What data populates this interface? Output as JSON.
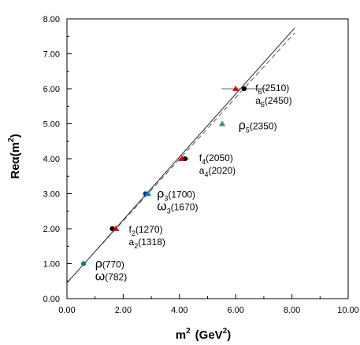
{
  "chart_data": {
    "type": "scatter",
    "title": "",
    "xlabel": {
      "main": "m",
      "sup": "2",
      "unit_open": "(GeV",
      "unit_sup": "2",
      "unit_close": ")"
    },
    "ylabel": {
      "main": "Reα(m",
      "sup": "2",
      "close": ")"
    },
    "xlim": [
      0,
      10
    ],
    "ylim": [
      0,
      8
    ],
    "x_ticks": [
      "0.00",
      "2.00",
      "4.00",
      "6.00",
      "8.00",
      "10.00"
    ],
    "y_ticks": [
      "0.00",
      "1.00",
      "2.00",
      "3.00",
      "4.00",
      "5.00",
      "6.00",
      "7.00",
      "8.00"
    ],
    "grid": false,
    "series": [
      {
        "marker": "circle",
        "color": "#008080",
        "points": [
          {
            "x": 0.59,
            "y": 1.0
          }
        ]
      },
      {
        "marker": "circle",
        "color": "#000000",
        "points": [
          {
            "x": 1.61,
            "y": 2.0
          },
          {
            "x": 4.2,
            "y": 4.0
          },
          {
            "x": 6.3,
            "y": 6.0
          }
        ]
      },
      {
        "marker": "triangle",
        "color": "#dd0000",
        "points": [
          {
            "x": 1.74,
            "y": 2.0
          },
          {
            "x": 4.08,
            "y": 4.0
          },
          {
            "x": 6.0,
            "y": 6.0
          }
        ]
      },
      {
        "marker": "circle",
        "color": "#0033cc",
        "points": [
          {
            "x": 2.79,
            "y": 3.0
          }
        ]
      },
      {
        "marker": "triangle",
        "color": "#009090",
        "points": [
          {
            "x": 2.89,
            "y": 3.0
          }
        ]
      },
      {
        "marker": "triangle",
        "color": "#339966",
        "points": [
          {
            "x": 5.52,
            "y": 5.0
          }
        ]
      }
    ],
    "error_bars": [
      {
        "y": 6.0,
        "x_from": 5.5,
        "x_to": 7.1
      },
      {
        "y": 4.0,
        "x_from": 3.95,
        "x_to": 4.35
      }
    ],
    "fit_lines": [
      {
        "style": "solid",
        "from": {
          "x": 0.0,
          "y": 0.45
        },
        "to": {
          "x": 8.1,
          "y": 7.74
        }
      },
      {
        "style": "dashed",
        "from": {
          "x": 0.5,
          "y": 0.9
        },
        "to": {
          "x": 8.1,
          "y": 7.6
        }
      }
    ],
    "annotations": [
      {
        "lines": [
          {
            "name": "ρ",
            "sub": "",
            "mass": "(770)"
          },
          {
            "name": "ω",
            "sub": "",
            "mass": "(782)"
          }
        ],
        "x": 1.0,
        "y": 1.0
      },
      {
        "lines": [
          {
            "name": "f",
            "sub": "2",
            "mass": "(1270)"
          },
          {
            "name": "a",
            "sub": "2",
            "mass": "(1318)"
          }
        ],
        "x": 2.2,
        "y": 2.0
      },
      {
        "lines": [
          {
            "name": "ρ",
            "sub": "3",
            "mass": "(1700)"
          },
          {
            "name": "ω",
            "sub": "3",
            "mass": "(1670)"
          }
        ],
        "x": 3.2,
        "y": 3.0
      },
      {
        "lines": [
          {
            "name": "f",
            "sub": "4",
            "mass": "(2050)"
          },
          {
            "name": "a",
            "sub": "4",
            "mass": "(2020)"
          }
        ],
        "x": 4.7,
        "y": 4.05
      },
      {
        "lines": [
          {
            "name": "ρ",
            "sub": "5",
            "mass": "(2350)"
          }
        ],
        "x": 6.1,
        "y": 4.95
      },
      {
        "lines": [
          {
            "name": "f",
            "sub": "6",
            "mass": "(2510)"
          },
          {
            "name": "a",
            "sub": "6",
            "mass": "(2450)"
          }
        ],
        "x": 6.7,
        "y": 6.05
      }
    ]
  }
}
